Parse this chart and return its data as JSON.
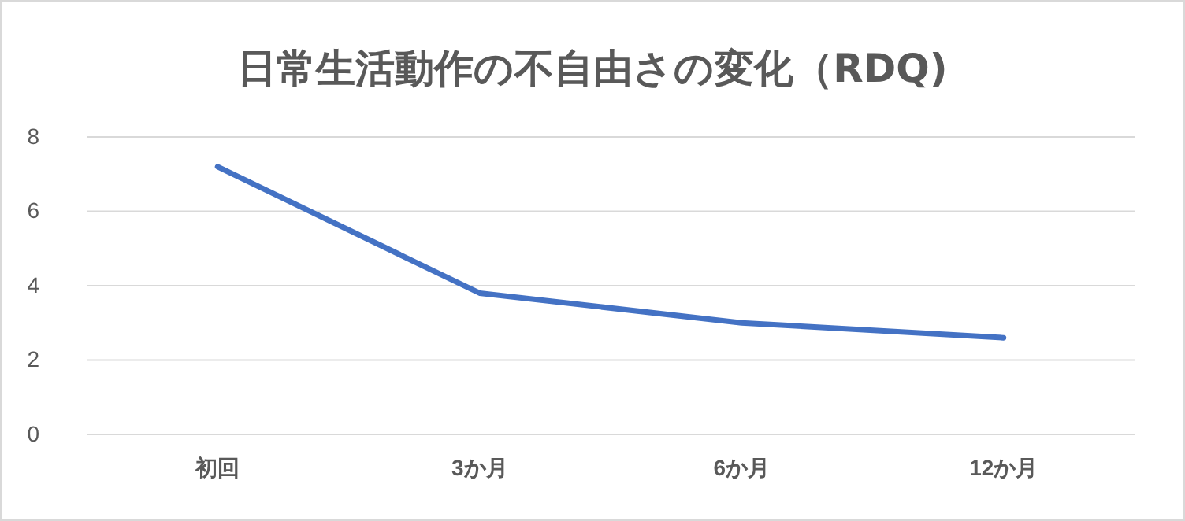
{
  "chart_data": {
    "type": "line",
    "title": "日常生活動作の不自由さの変化（RDQ)",
    "categories": [
      "初回",
      "3か月",
      "6か月",
      "12か月"
    ],
    "series": [
      {
        "color": "#4472c4",
        "values": [
          7.2,
          3.8,
          3.0,
          2.6
        ]
      }
    ],
    "ylim": [
      0,
      8
    ],
    "yticks": [
      0,
      2,
      4,
      6,
      8
    ],
    "grid": "y",
    "marker": "none",
    "line_style": "solid"
  }
}
